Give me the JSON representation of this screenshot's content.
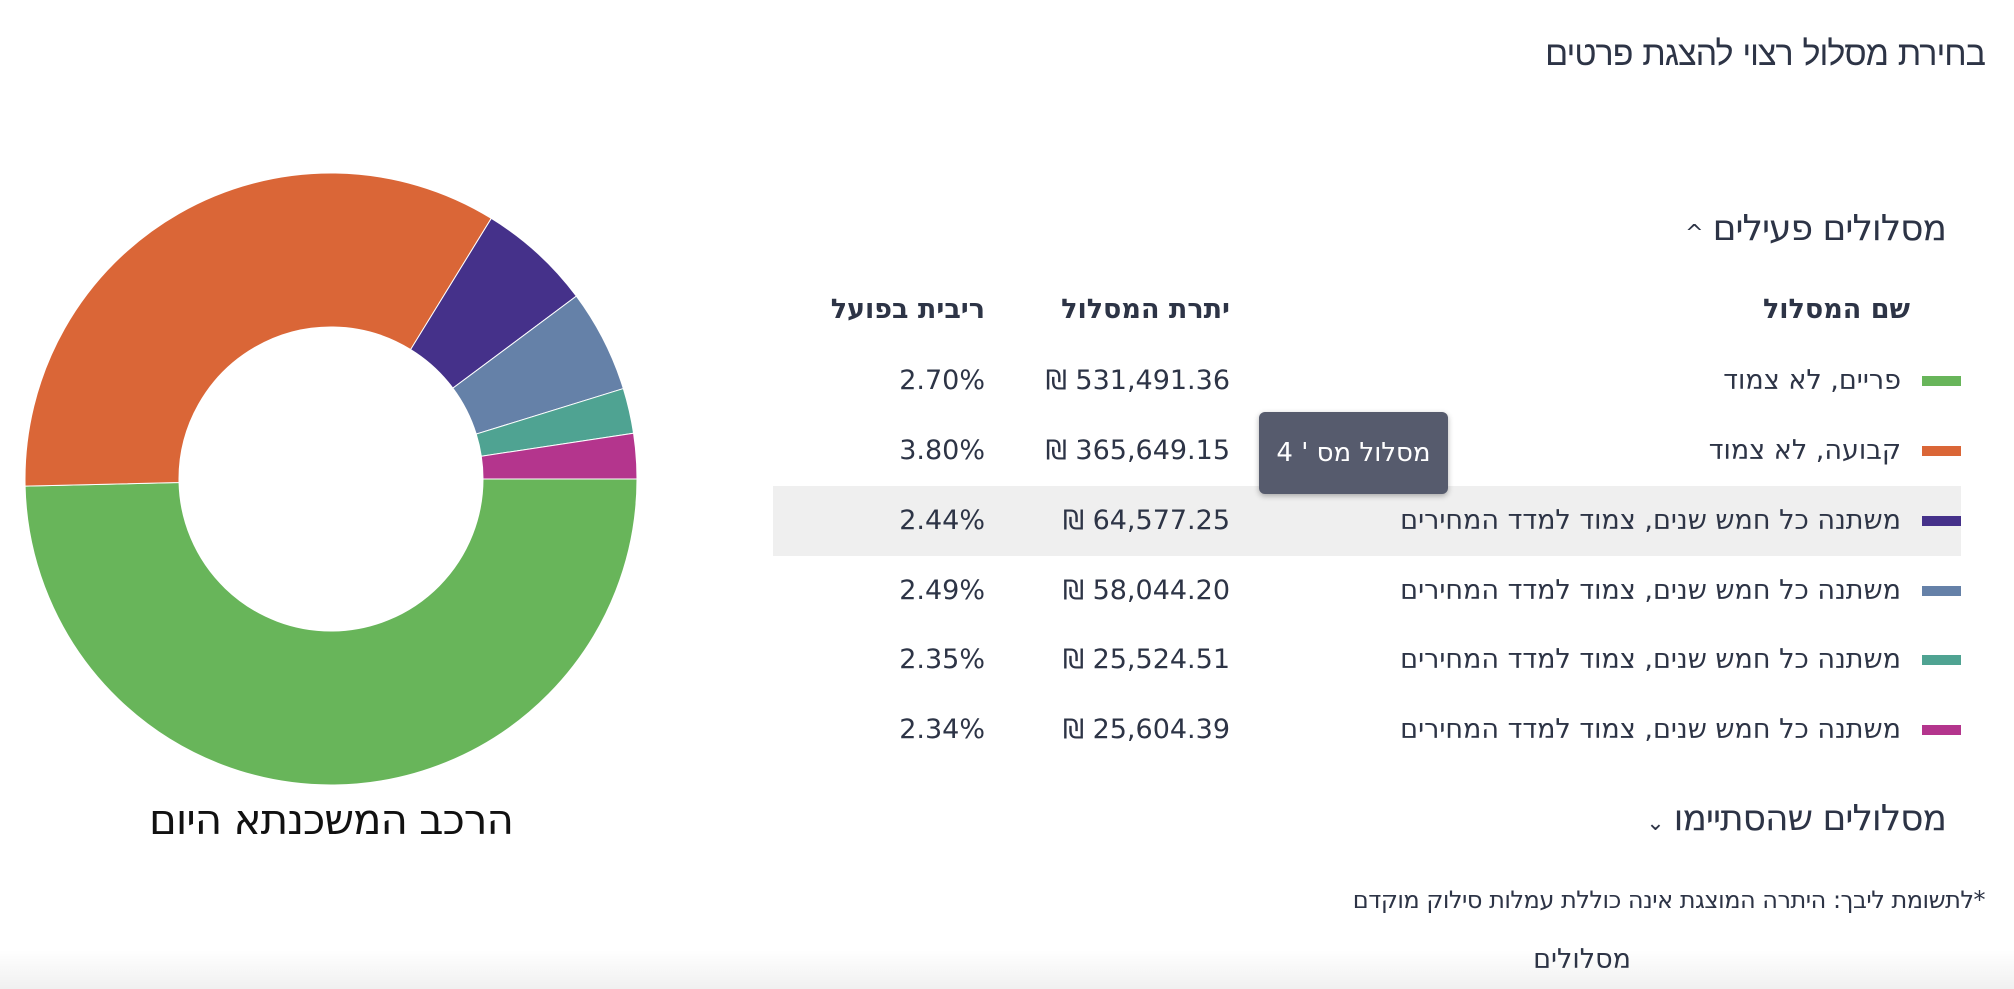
{
  "header": {
    "title": "בחירת מסלול רצוי להצגת פרטים"
  },
  "active_section": {
    "title": "מסלולים פעילים",
    "icon": "chevron-up-icon",
    "expanded": true
  },
  "table": {
    "columns": [
      "שם המסלול",
      "יתרת המסלול",
      "ריבית בפועל"
    ],
    "rows": [
      {
        "name": "פריים, לא צמוד",
        "balance": "531,491.36 ₪",
        "rate": "2.70%",
        "color": "#68b55a"
      },
      {
        "name": "קבועה, לא צמוד",
        "balance": "365,649.15 ₪",
        "rate": "3.80%",
        "color": "#da6637"
      },
      {
        "name": "משתנה כל חמש שנים, צמוד למדד המחירים",
        "balance": "64,577.25 ₪",
        "rate": "2.44%",
        "color": "#45318a",
        "highlighted": true
      },
      {
        "name": "משתנה כל חמש שנים, צמוד למדד המחירים",
        "balance": "58,044.20 ₪",
        "rate": "2.49%",
        "color": "#6581a8"
      },
      {
        "name": "משתנה כל חמש שנים, צמוד למדד המחירים",
        "balance": "25,524.51 ₪",
        "rate": "2.35%",
        "color": "#4fa392"
      },
      {
        "name": "משתנה כל חמש שנים, צמוד למדד המחירים",
        "balance": "25,604.39 ₪",
        "rate": "2.34%",
        "color": "#b4358d"
      }
    ]
  },
  "tooltip": {
    "text": "מסלול מס ' 4"
  },
  "ended_section": {
    "title": "מסלולים שהסתיימו",
    "icon": "chevron-down-icon",
    "expanded": false
  },
  "note": "*לתשומת ליבך: היתרה המוצגת אינה כוללת עמלות סילוק מוקדם",
  "footer": {
    "link": "מסלולים"
  },
  "chart_data": {
    "type": "pie",
    "donut": true,
    "title": "הרכב המשכנתא היום",
    "categories": [
      "פריים, לא צמוד",
      "קבועה, לא צמוד",
      "משתנה כל חמש שנים, צמוד למדד המחירים",
      "משתנה כל חמש שנים, צמוד למדד המחירים",
      "משתנה כל חמש שנים, צמוד למדד המחירים",
      "משתנה כל חמש שנים, צמוד למדד המחירים"
    ],
    "values": [
      531491.36,
      365649.15,
      64577.25,
      58044.2,
      25524.51,
      25604.39
    ],
    "colors": [
      "#68b55a",
      "#da6637",
      "#45318a",
      "#6581a8",
      "#4fa392",
      "#b4358d"
    ]
  }
}
